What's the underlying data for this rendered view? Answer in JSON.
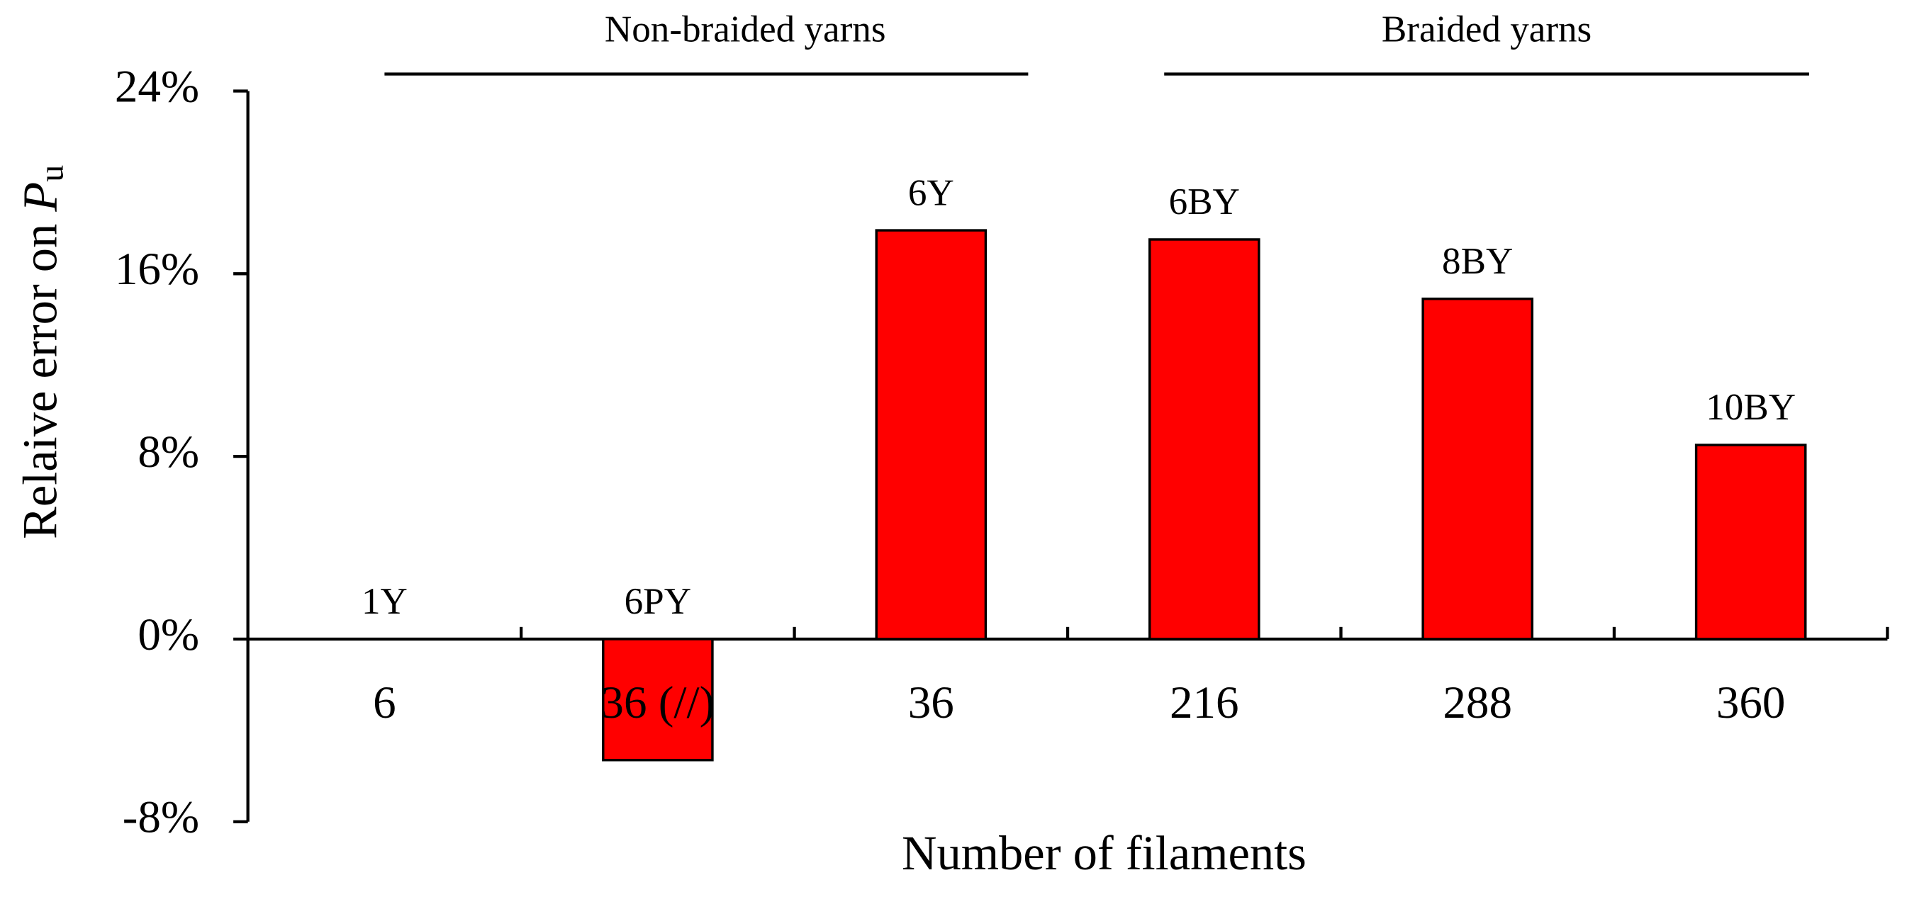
{
  "chart_data": {
    "type": "bar",
    "ylabel": {
      "text": "Relaive error on ",
      "var": "P",
      "sub": "u"
    },
    "xlabel": "Number of filaments",
    "categories": [
      "6",
      "36 (//)",
      "36",
      "216",
      "288",
      "360"
    ],
    "values": [
      0,
      -5.3,
      17.9,
      17.5,
      14.9,
      8.5
    ],
    "bar_labels": [
      "1Y",
      "6PY",
      "6Y",
      "6BY",
      "8BY",
      "10BY"
    ],
    "groups": [
      "Non-braided yarns",
      "Braided yarns"
    ],
    "color": "#ff0000",
    "ylim": [
      -8,
      24
    ],
    "yticks": [
      {
        "value": 24,
        "label": "24%"
      },
      {
        "value": 16,
        "label": "16%"
      },
      {
        "value": 8,
        "label": "8%"
      },
      {
        "value": 0,
        "label": "0%"
      },
      {
        "value": -8,
        "label": "-8%"
      }
    ],
    "grid": false
  }
}
